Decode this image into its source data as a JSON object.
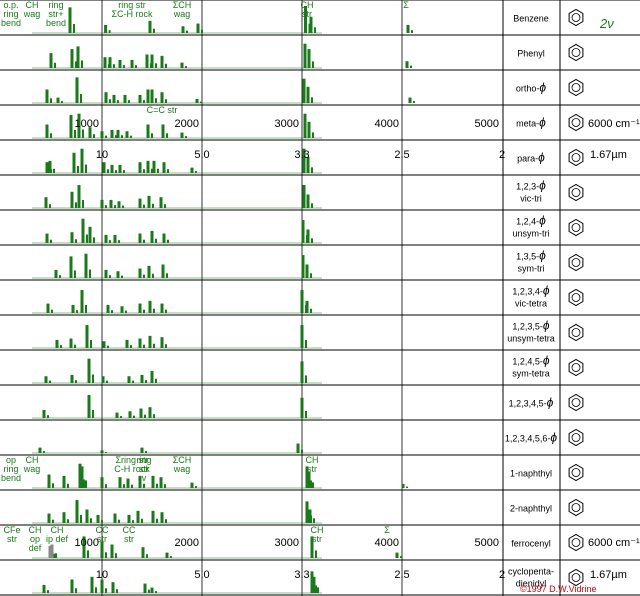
{
  "chart_data": {
    "type": "bar",
    "note_units": "wavenumber cm-1; microns on secondary scale",
    "axis_top": {
      "cm_ticks": [
        "1000",
        "2000",
        "3000",
        "4000",
        "5000",
        "6000 cm⁻¹"
      ],
      "um_ticks": [
        "10",
        "5.0",
        "3.3",
        "2.5",
        "2",
        "1.67µm"
      ],
      "xlim": [
        0,
        6300
      ]
    },
    "axis_bottom": {
      "cm_ticks": [
        "1000",
        "2000",
        "3000",
        "4000",
        "5000",
        "6000 cm⁻¹"
      ],
      "um_ticks": [
        "10",
        "5.0",
        "3.3",
        "2.5",
        "2",
        "1.67µm"
      ]
    },
    "rows": [
      {
        "label": "Benzene",
        "sub": "",
        "peaks": [
          [
            680,
            0.95
          ],
          [
            1036,
            0.3
          ],
          [
            1480,
            0.45
          ],
          [
            1810,
            0.25
          ],
          [
            1960,
            0.35
          ],
          [
            3035,
            1.0
          ],
          [
            3090,
            0.6
          ],
          [
            4060,
            0.3
          ]
        ]
      },
      {
        "label": "Phenyl",
        "sub": "",
        "peaks": [
          [
            490,
            0.55
          ],
          [
            700,
            0.7
          ],
          [
            760,
            0.8
          ],
          [
            1030,
            0.4
          ],
          [
            1080,
            0.4
          ],
          [
            1180,
            0.3
          ],
          [
            1300,
            0.3
          ],
          [
            1450,
            0.5
          ],
          [
            1500,
            0.5
          ],
          [
            1600,
            0.45
          ],
          [
            1800,
            0.2
          ],
          [
            3030,
            0.9
          ],
          [
            3070,
            0.7
          ],
          [
            4050,
            0.25
          ]
        ]
      },
      {
        "label": "ortho-",
        "sub": "",
        "phi": true,
        "peaks": [
          [
            450,
            0.5
          ],
          [
            560,
            0.2
          ],
          [
            750,
            0.95
          ],
          [
            1040,
            0.4
          ],
          [
            1120,
            0.3
          ],
          [
            1230,
            0.3
          ],
          [
            1380,
            0.3
          ],
          [
            1460,
            0.5
          ],
          [
            1500,
            0.5
          ],
          [
            1600,
            0.4
          ],
          [
            1950,
            0.15
          ],
          [
            3020,
            0.9
          ],
          [
            3060,
            0.6
          ],
          [
            4080,
            0.2
          ]
        ]
      },
      {
        "label": "meta-",
        "sub": "",
        "phi": true,
        "peaks": [
          [
            450,
            0.5
          ],
          [
            690,
            0.85
          ],
          [
            770,
            0.9
          ],
          [
            880,
            0.4
          ],
          [
            1000,
            0.25
          ],
          [
            1100,
            0.3
          ],
          [
            1160,
            0.3
          ],
          [
            1250,
            0.25
          ],
          [
            1460,
            0.5
          ],
          [
            1610,
            0.5
          ],
          [
            1800,
            0.2
          ],
          [
            3030,
            0.9
          ],
          [
            3070,
            0.6
          ]
        ]
      },
      {
        "label": "para-",
        "sub": "",
        "phi": true,
        "peaks": [
          [
            450,
            0.4
          ],
          [
            480,
            0.45
          ],
          [
            720,
            0.75
          ],
          [
            800,
            0.9
          ],
          [
            1020,
            0.4
          ],
          [
            1100,
            0.3
          ],
          [
            1180,
            0.3
          ],
          [
            1380,
            0.4
          ],
          [
            1460,
            0.45
          ],
          [
            1520,
            0.45
          ],
          [
            1620,
            0.4
          ],
          [
            1900,
            0.2
          ],
          [
            3020,
            0.9
          ],
          [
            3060,
            0.6
          ]
        ]
      },
      {
        "label": "1,2,3-",
        "sub": "vic-tri",
        "phi": true,
        "peaks": [
          [
            440,
            0.4
          ],
          [
            700,
            0.6
          ],
          [
            770,
            0.85
          ],
          [
            1000,
            0.3
          ],
          [
            1090,
            0.3
          ],
          [
            1170,
            0.25
          ],
          [
            1380,
            0.35
          ],
          [
            1470,
            0.45
          ],
          [
            1590,
            0.4
          ],
          [
            3020,
            0.85
          ],
          [
            3060,
            0.5
          ]
        ]
      },
      {
        "label": "1,2,4-",
        "sub": "unsym-tri",
        "phi": true,
        "peaks": [
          [
            450,
            0.35
          ],
          [
            700,
            0.4
          ],
          [
            810,
            0.9
          ],
          [
            880,
            0.6
          ],
          [
            1040,
            0.3
          ],
          [
            1130,
            0.3
          ],
          [
            1380,
            0.35
          ],
          [
            1500,
            0.45
          ],
          [
            1620,
            0.35
          ],
          [
            3010,
            0.85
          ],
          [
            3060,
            0.5
          ]
        ]
      },
      {
        "label": "1,3,5-",
        "sub": "sym-tri",
        "phi": true,
        "peaks": [
          [
            540,
            0.3
          ],
          [
            690,
            0.8
          ],
          [
            840,
            0.9
          ],
          [
            1040,
            0.3
          ],
          [
            1160,
            0.25
          ],
          [
            1380,
            0.35
          ],
          [
            1470,
            0.45
          ],
          [
            1610,
            0.5
          ],
          [
            3010,
            0.85
          ],
          [
            3050,
            0.5
          ]
        ]
      },
      {
        "label": "1,2,3,4-",
        "sub": "vic-tetra",
        "phi": true,
        "peaks": [
          [
            460,
            0.35
          ],
          [
            710,
            0.3
          ],
          [
            800,
            0.85
          ],
          [
            1060,
            0.3
          ],
          [
            1200,
            0.25
          ],
          [
            1380,
            0.35
          ],
          [
            1480,
            0.45
          ],
          [
            1600,
            0.35
          ],
          [
            3000,
            0.85
          ],
          [
            3050,
            0.45
          ]
        ]
      },
      {
        "label": "1,2,3,5-",
        "sub": "unsym-tetra",
        "phi": true,
        "peaks": [
          [
            550,
            0.3
          ],
          [
            690,
            0.35
          ],
          [
            850,
            0.85
          ],
          [
            1020,
            0.25
          ],
          [
            1250,
            0.3
          ],
          [
            1380,
            0.35
          ],
          [
            1480,
            0.45
          ],
          [
            1600,
            0.4
          ],
          [
            3000,
            0.85
          ]
        ]
      },
      {
        "label": "1,2,4,5-",
        "sub": "sym-tetra",
        "phi": true,
        "peaks": [
          [
            440,
            0.25
          ],
          [
            700,
            0.3
          ],
          [
            870,
            0.9
          ],
          [
            1010,
            0.25
          ],
          [
            1270,
            0.25
          ],
          [
            1400,
            0.3
          ],
          [
            1500,
            0.45
          ],
          [
            3000,
            0.8
          ]
        ]
      },
      {
        "label": "1,2,3,4,5-",
        "sub": "",
        "phi": true,
        "peaks": [
          [
            420,
            0.3
          ],
          [
            870,
            0.85
          ],
          [
            1150,
            0.2
          ],
          [
            1280,
            0.25
          ],
          [
            1390,
            0.35
          ],
          [
            1480,
            0.4
          ],
          [
            3000,
            0.75
          ]
        ]
      },
      {
        "label": "1,2,3,4,5,6-",
        "sub": "",
        "phi": true,
        "peaks": [
          [
            380,
            0.2
          ],
          [
            1000,
            0.1
          ],
          [
            1400,
            0.2
          ],
          [
            2960,
            0.35
          ]
        ]
      },
      {
        "label": "1-naphthyl",
        "sub": "",
        "peaks": [
          [
            470,
            0.5
          ],
          [
            620,
            0.45
          ],
          [
            780,
            0.9
          ],
          [
            800,
            0.8
          ],
          [
            1000,
            0.4
          ],
          [
            1180,
            0.4
          ],
          [
            1260,
            0.35
          ],
          [
            1380,
            0.45
          ],
          [
            1510,
            0.45
          ],
          [
            1590,
            0.4
          ],
          [
            1900,
            0.2
          ],
          [
            3050,
            0.8
          ],
          [
            3070,
            0.6
          ],
          [
            4010,
            0.15
          ]
        ]
      },
      {
        "label": "2-naphthyl",
        "sub": "",
        "peaks": [
          [
            470,
            0.35
          ],
          [
            620,
            0.4
          ],
          [
            750,
            0.85
          ],
          [
            850,
            0.5
          ],
          [
            960,
            0.3
          ],
          [
            1130,
            0.35
          ],
          [
            1270,
            0.3
          ],
          [
            1360,
            0.45
          ],
          [
            1510,
            0.45
          ],
          [
            1600,
            0.4
          ],
          [
            3050,
            0.8
          ],
          [
            3080,
            0.5
          ]
        ]
      },
      {
        "label": "ferrocenyl",
        "sub": "",
        "peaks": [
          [
            480,
            0.45
          ],
          [
            500,
            0.5
          ],
          [
            820,
            0.8
          ],
          [
            1000,
            0.6
          ],
          [
            1100,
            0.5
          ],
          [
            1410,
            0.4
          ],
          [
            1650,
            0.2
          ],
          [
            3100,
            0.8
          ],
          [
            3950,
            0.2
          ]
        ]
      },
      {
        "label": "cyclopenta-",
        "sub": "dienidyl",
        "peaks": [
          [
            420,
            0.3
          ],
          [
            700,
            0.5
          ],
          [
            900,
            0.6
          ],
          [
            1000,
            0.5
          ],
          [
            1110,
            0.4
          ],
          [
            1430,
            0.35
          ],
          [
            1500,
            0.2
          ],
          [
            3100,
            0.8
          ],
          [
            3120,
            0.6
          ]
        ]
      }
    ],
    "annotations": [
      {
        "row": 0,
        "x": 90,
        "lines": [
          "o.p.",
          "ring",
          "bend"
        ]
      },
      {
        "row": 0,
        "x": 300,
        "lines": [
          "CH",
          "wag"
        ]
      },
      {
        "row": 0,
        "x": 540,
        "lines": [
          "ring",
          "str+",
          "bend"
        ]
      },
      {
        "row": 0,
        "x": 1300,
        "lines": [
          "ring str",
          "ΣC-H rock"
        ]
      },
      {
        "row": 0,
        "x": 1800,
        "lines": [
          "ΣCH",
          "wag"
        ]
      },
      {
        "row": 0,
        "x": 3050,
        "lines": [
          "CH",
          "str"
        ]
      },
      {
        "row": 0,
        "x": 4040,
        "lines": [
          "Σ"
        ]
      },
      {
        "row": 3,
        "x": 1600,
        "lines": [
          "C=C str"
        ]
      },
      {
        "row": 13,
        "x": 90,
        "lines": [
          "op",
          "ring",
          "bend"
        ]
      },
      {
        "row": 13,
        "x": 300,
        "lines": [
          "CH",
          "wag"
        ]
      },
      {
        "row": 13,
        "x": 1420,
        "lines": [
          "ring",
          "str",
          "v"
        ]
      },
      {
        "row": 13,
        "x": 1300,
        "lines": [
          "Σring str",
          "C-H rock"
        ]
      },
      {
        "row": 13,
        "x": 1800,
        "lines": [
          "ΣCH",
          "wag"
        ]
      },
      {
        "row": 13,
        "x": 3100,
        "lines": [
          "CH",
          "str"
        ]
      },
      {
        "row": 15,
        "x": 100,
        "lines": [
          "CFe",
          "str"
        ]
      },
      {
        "row": 15,
        "x": 330,
        "lines": [
          "CH",
          "op",
          "def"
        ]
      },
      {
        "row": 15,
        "x": 550,
        "lines": [
          "CH",
          "ip def"
        ]
      },
      {
        "row": 15,
        "x": 1000,
        "lines": [
          "CC",
          "str"
        ]
      },
      {
        "row": 15,
        "x": 1270,
        "lines": [
          "CC",
          "str"
        ]
      },
      {
        "row": 15,
        "x": 3150,
        "lines": [
          "CH",
          "str"
        ]
      },
      {
        "row": 15,
        "x": 3850,
        "lines": [
          "Σ"
        ]
      }
    ],
    "corner_label": "2ν",
    "phi_glyph": "ϕ",
    "copyright": "©1997 D.W.Vidrine"
  }
}
